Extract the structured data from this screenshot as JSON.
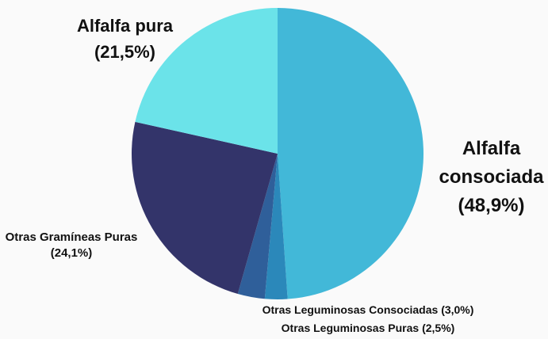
{
  "chart_data": {
    "type": "pie",
    "categories": [
      "Alfalfa consociada",
      "Otras Leguminosas Puras",
      "Otras Leguminosas Consociadas",
      "Otras Gramíneas Puras",
      "Alfalfa pura"
    ],
    "values": [
      48.9,
      2.5,
      3.0,
      24.1,
      21.5
    ],
    "value_labels": [
      "(48,9%)",
      "(2,5%)",
      "(3,0%)",
      "(24,1%)",
      "(21,5%)"
    ],
    "colors": [
      "#42b8d8",
      "#2b88ba",
      "#2f5f9a",
      "#33346a",
      "#6be3e9"
    ]
  }
}
